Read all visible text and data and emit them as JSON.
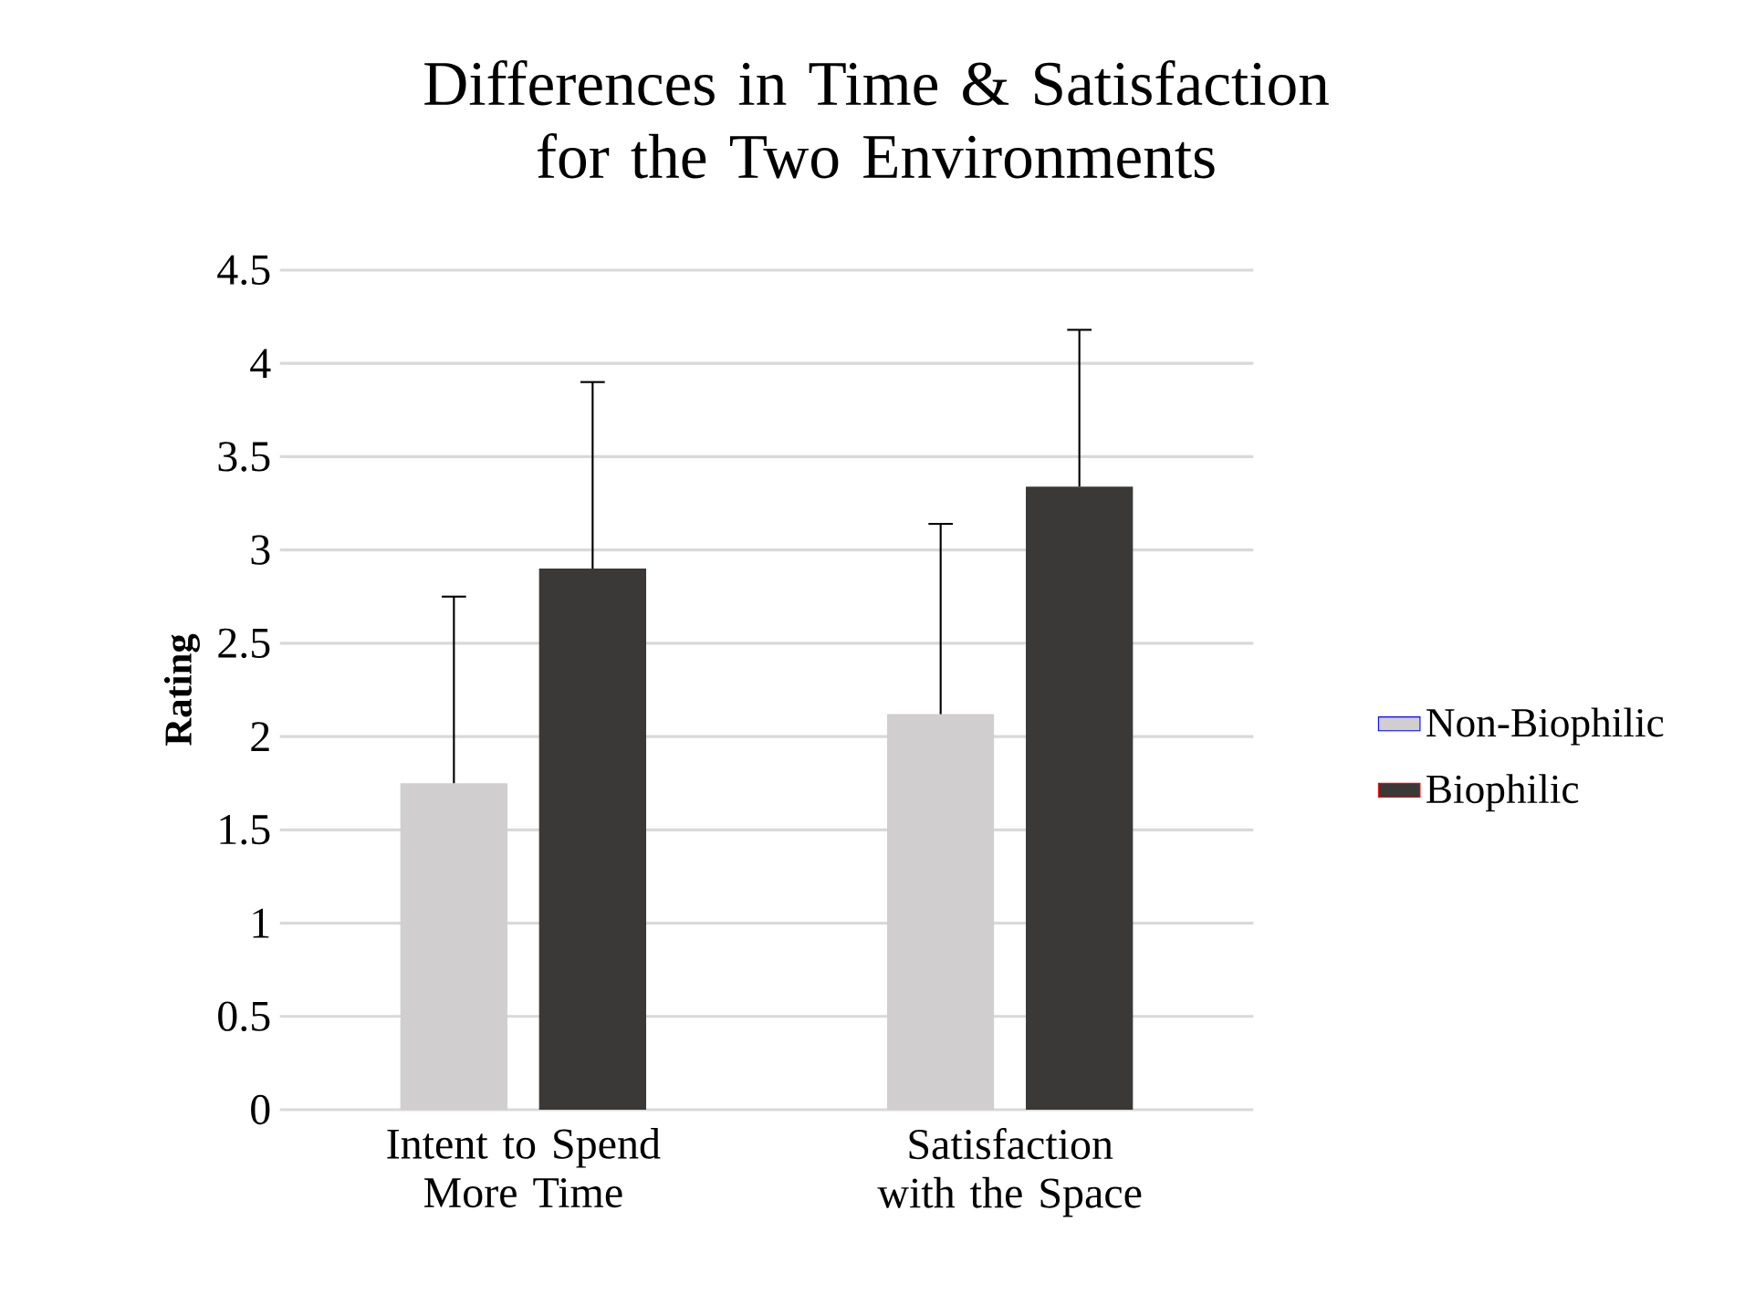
{
  "chart_data": {
    "type": "bar",
    "title": "Differences in Time & Satisfaction  for the Two Environments",
    "ylabel": "Rating",
    "categories": [
      "Intent to Spend More Time",
      "Satisfaction with the Space"
    ],
    "series": [
      {
        "name": "Non-Biophilic",
        "color": "#d0cece",
        "values": [
          1.75,
          2.12
        ],
        "errors": [
          [
            1.75,
            2.75
          ],
          [
            2.12,
            3.14
          ]
        ]
      },
      {
        "name": "Biophilic",
        "color": "#3b3838",
        "values": [
          2.9,
          3.34
        ],
        "errors": [
          [
            2.9,
            3.9
          ],
          [
            3.34,
            4.18
          ]
        ]
      }
    ],
    "ylim": [
      0,
      4.5
    ],
    "yticks": [
      0,
      0.5,
      1,
      1.5,
      2,
      2.5,
      3,
      3.5,
      4,
      4.5
    ],
    "grid": "y",
    "legend": "right"
  }
}
